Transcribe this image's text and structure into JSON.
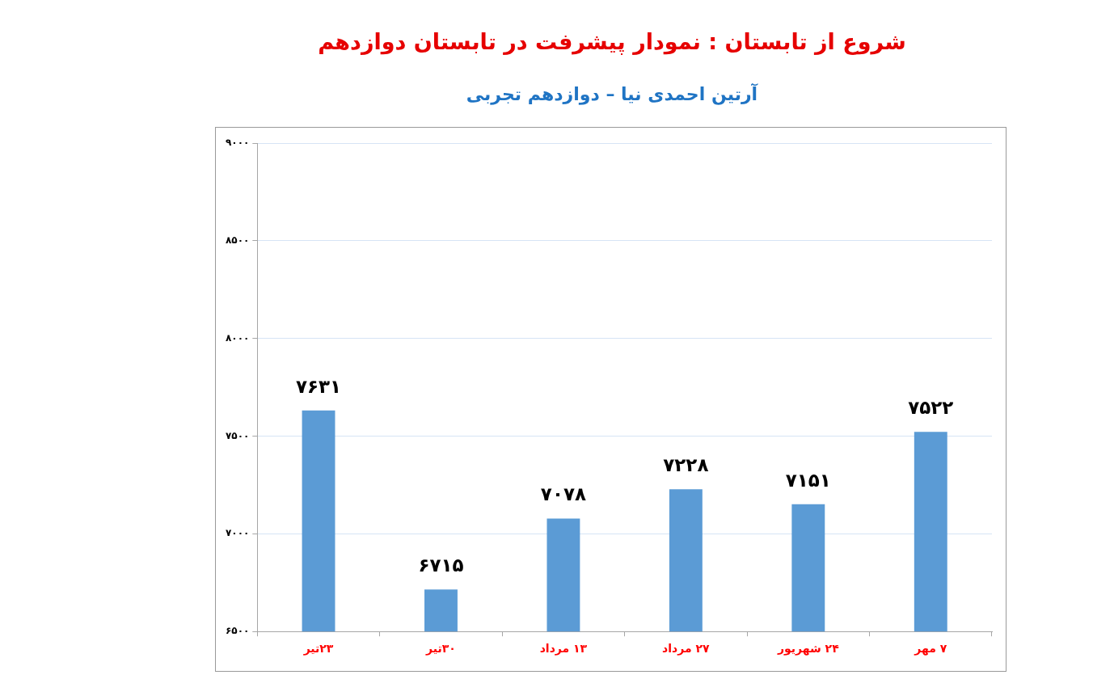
{
  "chart_data": {
    "type": "bar",
    "title": "شروع از تابستان : نمودار پیشرفت در تابستان دوازدهم",
    "subtitle": "آرتین احمدی نیا – دوازدهم تجربی",
    "categories": [
      "۲۳تیر",
      "۳۰تیر",
      "۱۳ مرداد",
      "۲۷ مرداد",
      "۲۴ شهریور",
      "۷ مهر"
    ],
    "values": [
      7631,
      6715,
      7078,
      7228,
      7151,
      7522
    ],
    "value_labels": [
      "۷۶۳۱",
      "۶۷۱۵",
      "۷۰۷۸",
      "۷۲۲۸",
      "۷۱۵۱",
      "۷۵۲۲"
    ],
    "color": "#5b9bd5",
    "ylim": [
      6500,
      9000
    ],
    "yticks": [
      {
        "value": 6500,
        "label": "۶۵۰۰"
      },
      {
        "value": 7000,
        "label": "۷۰۰۰"
      },
      {
        "value": 7500,
        "label": "۷۵۰۰"
      },
      {
        "value": 8000,
        "label": "۸۰۰۰"
      },
      {
        "value": 8500,
        "label": "۸۵۰۰"
      },
      {
        "value": 9000,
        "label": "۹۰۰۰"
      }
    ],
    "grid": "y"
  }
}
